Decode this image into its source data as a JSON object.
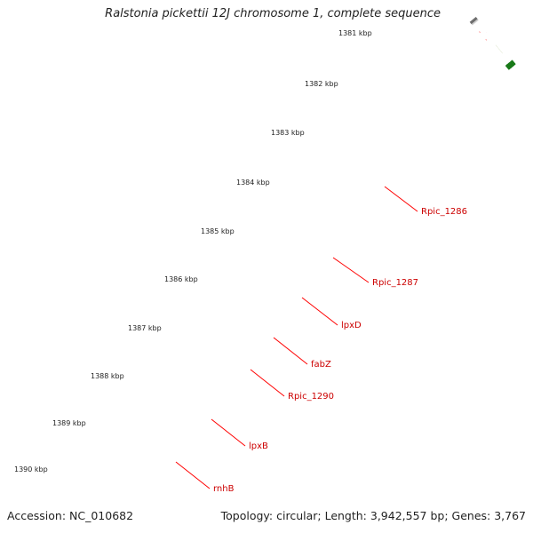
{
  "title": "Ralstonia pickettii 12J chromosome 1, complete sequence",
  "accession_text": "Accession: NC_010682",
  "summary_text": "Topology: circular; Length: 3,942,557 bp; Genes: 3,767",
  "scale_labels": [
    "1381 kbp",
    "1382 kbp",
    "1383 kbp",
    "1384 kbp",
    "1385 kbp",
    "1386 kbp",
    "1387 kbp",
    "1388 kbp",
    "1389 kbp",
    "1390 kbp"
  ],
  "gene_labels": [
    "Rpic_1286",
    "Rpic_1287",
    "lpxD",
    "fabZ",
    "Rpic_1290",
    "lpxB",
    "rnhB"
  ],
  "colors": {
    "backbone": "#8a8a8a",
    "cds_strand": "#ff0000",
    "gene_strand": "#6b8e23",
    "label_text": "#cc0000",
    "leader_line": "#ff0000",
    "tick": "#1a7a1a",
    "blue_feature": "#7b6bd6",
    "magenta_feature": "#ff1fb4",
    "pink_feature": "#f08b8b"
  }
}
